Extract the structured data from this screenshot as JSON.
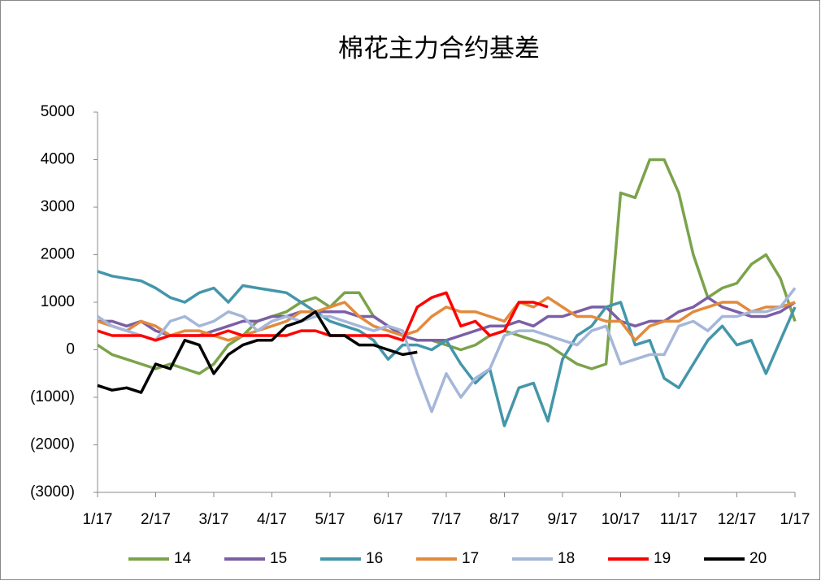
{
  "chart_data": {
    "type": "line",
    "title": "棉花主力合约基差",
    "xlim": [
      0,
      12
    ],
    "xticks": [
      {
        "value": 0,
        "label": "1/17"
      },
      {
        "value": 1,
        "label": "2/17"
      },
      {
        "value": 2,
        "label": "3/17"
      },
      {
        "value": 3,
        "label": "4/17"
      },
      {
        "value": 4,
        "label": "5/17"
      },
      {
        "value": 5,
        "label": "6/17"
      },
      {
        "value": 6,
        "label": "7/17"
      },
      {
        "value": 7,
        "label": "8/17"
      },
      {
        "value": 8,
        "label": "9/17"
      },
      {
        "value": 9,
        "label": "10/17"
      },
      {
        "value": 10,
        "label": "11/17"
      },
      {
        "value": 11,
        "label": "12/17"
      },
      {
        "value": 12,
        "label": "1/17"
      }
    ],
    "ylim": [
      -3000,
      5000
    ],
    "yticks": [
      5000,
      4000,
      3000,
      2000,
      1000,
      0,
      {
        "value": -1000,
        "label": "(1000)"
      },
      {
        "value": -2000,
        "label": "(2000)"
      },
      {
        "value": -3000,
        "label": "(3000)"
      }
    ],
    "negative_label_color": "#ff0000",
    "x": [
      0,
      0.25,
      0.5,
      0.75,
      1,
      1.25,
      1.5,
      1.75,
      2,
      2.25,
      2.5,
      2.75,
      3,
      3.25,
      3.5,
      3.75,
      4,
      4.25,
      4.5,
      4.75,
      5,
      5.25,
      5.5,
      5.75,
      6,
      6.25,
      6.5,
      6.75,
      7,
      7.25,
      7.5,
      7.75,
      8,
      8.25,
      8.5,
      8.75,
      9,
      9.25,
      9.5,
      9.75,
      10,
      10.25,
      10.5,
      10.75,
      11,
      11.25,
      11.5,
      11.75,
      12
    ],
    "series": [
      {
        "name": "14",
        "color": "#7ba34b",
        "values": [
          100,
          -100,
          -200,
          -300,
          -400,
          -300,
          -400,
          -500,
          -300,
          100,
          300,
          600,
          700,
          800,
          1000,
          1100,
          900,
          1200,
          1200,
          700,
          500,
          300,
          200,
          200,
          100,
          0,
          100,
          300,
          400,
          300,
          200,
          100,
          -100,
          -300,
          -400,
          -300,
          3300,
          3200,
          4000,
          4000,
          3300,
          2000,
          1100,
          1300,
          1400,
          1800,
          2000,
          1500,
          600
        ]
      },
      {
        "name": "15",
        "color": "#7b5fa5",
        "values": [
          600,
          600,
          500,
          600,
          400,
          300,
          300,
          300,
          400,
          500,
          600,
          600,
          700,
          700,
          800,
          800,
          800,
          800,
          700,
          700,
          500,
          300,
          200,
          200,
          200,
          300,
          400,
          500,
          500,
          600,
          500,
          700,
          700,
          800,
          900,
          900,
          600,
          500,
          600,
          600,
          800,
          900,
          1100,
          900,
          800,
          700,
          700,
          800,
          1000
        ]
      },
      {
        "name": "16",
        "color": "#4496aa",
        "values": [
          1650,
          1550,
          1500,
          1450,
          1300,
          1100,
          1000,
          1200,
          1300,
          1000,
          1350,
          1300,
          1250,
          1200,
          1000,
          800,
          600,
          500,
          400,
          200,
          -200,
          100,
          100,
          0,
          200,
          -300,
          -700,
          -400,
          -1600,
          -800,
          -700,
          -1500,
          -200,
          300,
          500,
          900,
          1000,
          100,
          200,
          -600,
          -800,
          -300,
          200,
          500,
          100,
          200,
          -500,
          200,
          900
        ]
      },
      {
        "name": "17",
        "color": "#e38a3c",
        "values": [
          600,
          500,
          400,
          600,
          500,
          300,
          400,
          400,
          300,
          200,
          300,
          400,
          500,
          600,
          800,
          800,
          900,
          1000,
          700,
          500,
          400,
          300,
          400,
          700,
          900,
          800,
          800,
          700,
          600,
          1000,
          900,
          1100,
          900,
          700,
          700,
          600,
          600,
          200,
          500,
          600,
          600,
          800,
          900,
          1000,
          1000,
          800,
          900,
          900,
          1000
        ]
      },
      {
        "name": "18",
        "color": "#a5b7d9",
        "values": [
          700,
          500,
          400,
          300,
          200,
          600,
          700,
          500,
          600,
          800,
          700,
          400,
          600,
          700,
          600,
          700,
          700,
          600,
          500,
          400,
          500,
          400,
          -500,
          -1300,
          -500,
          -1000,
          -600,
          -400,
          300,
          400,
          400,
          300,
          200,
          100,
          400,
          500,
          -300,
          -200,
          -100,
          -100,
          500,
          600,
          400,
          700,
          700,
          800,
          800,
          900,
          1300
        ]
      },
      {
        "name": "19",
        "color": "#ff0000",
        "values": [
          400,
          300,
          300,
          300,
          200,
          300,
          300,
          300,
          300,
          400,
          300,
          300,
          300,
          300,
          400,
          400,
          300,
          300,
          300,
          300,
          300,
          200,
          900,
          1100,
          1200,
          500,
          600,
          300,
          400,
          1000,
          1000,
          900,
          null,
          null,
          null,
          null,
          null,
          null,
          null,
          null,
          null,
          null,
          null,
          null,
          null,
          null,
          null,
          null,
          null
        ]
      },
      {
        "name": "20",
        "color": "#000000",
        "values": [
          -750,
          -850,
          -800,
          -900,
          -300,
          -400,
          200,
          100,
          -500,
          -100,
          100,
          200,
          200,
          500,
          600,
          800,
          300,
          300,
          100,
          100,
          0,
          -100,
          -50,
          null,
          null,
          null,
          null,
          null,
          null,
          null,
          null,
          null,
          null,
          null,
          null,
          null,
          null,
          null,
          null,
          null,
          null,
          null,
          null,
          null,
          null,
          null,
          null,
          null,
          null
        ]
      }
    ]
  }
}
